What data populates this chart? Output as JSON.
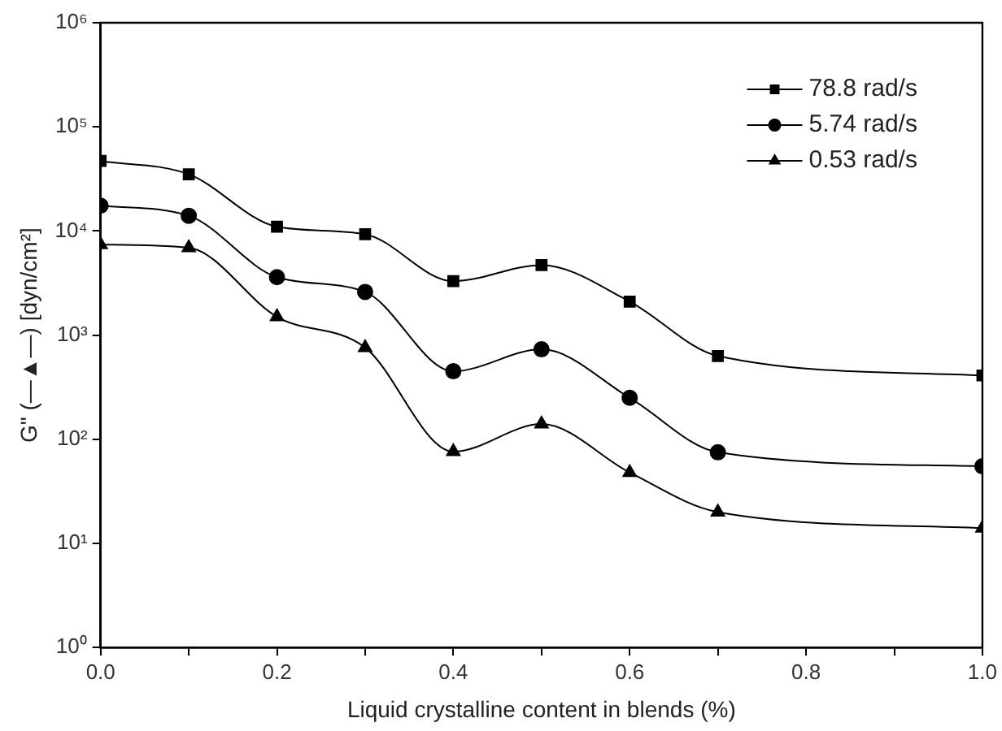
{
  "chart_data": {
    "type": "line",
    "xlabel": "Liquid crystalline content in blends (%)",
    "ylabel": "G\" (—▲—) [dyn/cm²]",
    "x": [
      0.0,
      0.1,
      0.2,
      0.3,
      0.4,
      0.5,
      0.6,
      0.7,
      1.0
    ],
    "series": [
      {
        "name": "78.8 rad/s",
        "color": "#000000",
        "marker": "square",
        "values": [
          47000,
          35000,
          11000,
          9300,
          3300,
          4700,
          2100,
          630,
          410
        ]
      },
      {
        "name": "5.74 rad/s",
        "color": "#000000",
        "marker": "circle",
        "values": [
          17500,
          14000,
          3600,
          2600,
          450,
          730,
          250,
          75,
          55
        ]
      },
      {
        "name": "0.53 rad/s",
        "color": "#000000",
        "marker": "triangle",
        "values": [
          7400,
          6900,
          1500,
          760,
          76,
          140,
          48,
          20,
          14
        ]
      }
    ],
    "log": "y",
    "xlim": [
      0,
      1
    ],
    "ylim": [
      1,
      1000000
    ],
    "xticks": [
      {
        "value": 0,
        "label": "0.0"
      },
      {
        "value": 0.1,
        "label": null
      },
      {
        "value": 0.2,
        "label": "0.2"
      },
      {
        "value": 0.3,
        "label": null
      },
      {
        "value": 0.4,
        "label": "0.4"
      },
      {
        "value": 0.5,
        "label": null
      },
      {
        "value": 0.6,
        "label": "0.6"
      },
      {
        "value": 0.7,
        "label": null
      },
      {
        "value": 0.8,
        "label": "0.8"
      },
      {
        "value": 0.9,
        "label": null
      },
      {
        "value": 1,
        "label": "1.0"
      }
    ],
    "yticks": [
      {
        "value": 1,
        "label": "10⁰"
      },
      {
        "value": 10,
        "label": "10¹"
      },
      {
        "value": 100,
        "label": "10²"
      },
      {
        "value": 1000,
        "label": "10³"
      },
      {
        "value": 10000,
        "label": "10⁴"
      },
      {
        "value": 100000,
        "label": "10⁵"
      },
      {
        "value": 1000000,
        "label": "10⁶"
      }
    ],
    "grid": false,
    "legend": "top right",
    "line_style": "solid"
  }
}
